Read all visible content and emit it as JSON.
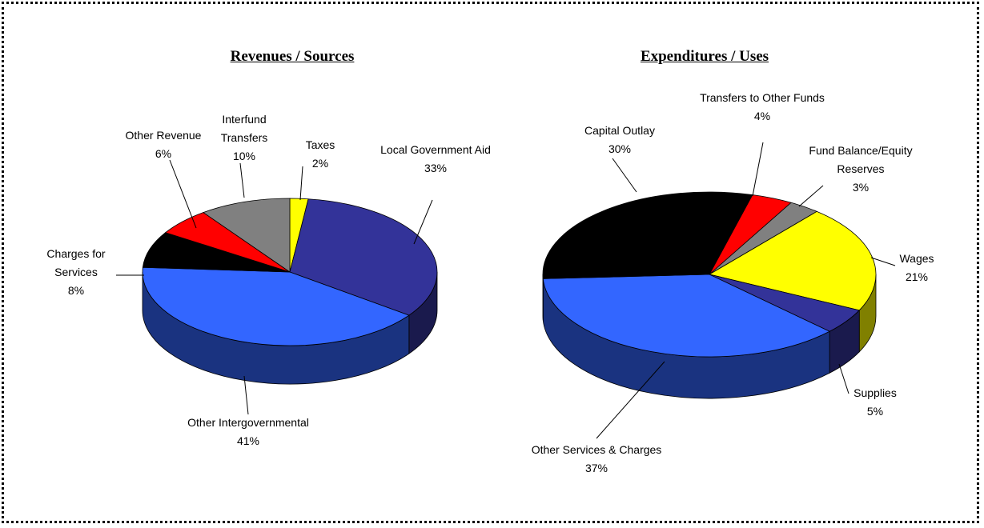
{
  "chart_data": [
    {
      "type": "pie",
      "title": "Revenues / Sources",
      "categories": [
        "Taxes",
        "Local Government Aid",
        "Other Intergovernmental",
        "Charges for Services",
        "Other Revenue",
        "Interfund Transfers"
      ],
      "values": [
        2,
        33,
        41,
        8,
        6,
        10
      ],
      "value_labels": [
        "2%",
        "33%",
        "41%",
        "8%",
        "6%",
        "10%"
      ],
      "colors": [
        "#ffff00",
        "#333399",
        "#3366ff",
        "#000000",
        "#ff0000",
        "#808080"
      ]
    },
    {
      "type": "pie",
      "title": "Expenditures / Uses",
      "categories": [
        "Transfers to Other Funds",
        "Fund Balance/Equity Reserves",
        "Wages",
        "Supplies",
        "Other Services & Charges",
        "Capital Outlay"
      ],
      "values": [
        4,
        3,
        21,
        5,
        37,
        30
      ],
      "value_labels": [
        "4%",
        "3%",
        "21%",
        "5%",
        "37%",
        "30%"
      ],
      "colors": [
        "#ff0000",
        "#808080",
        "#ffff00",
        "#333399",
        "#3366ff",
        "#000000"
      ]
    }
  ]
}
